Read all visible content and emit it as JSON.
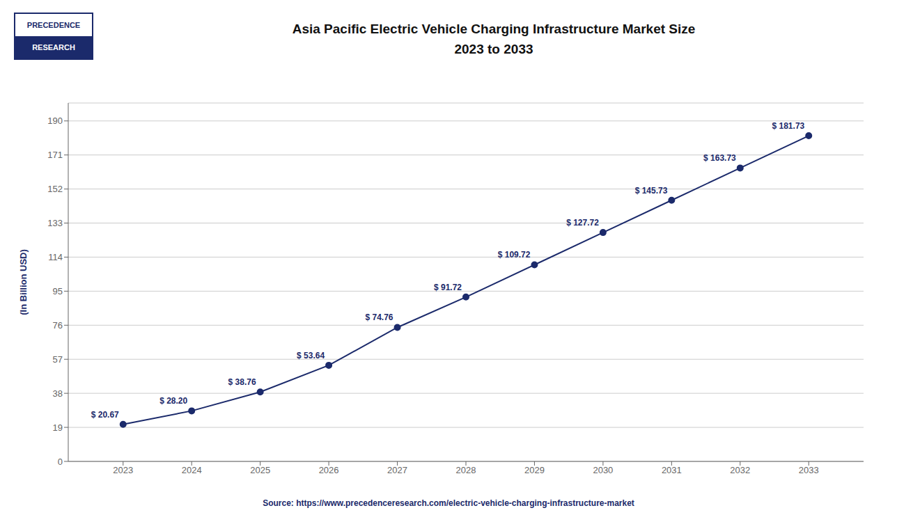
{
  "chart_data": {
    "type": "line",
    "title": "Asia Pacific Electric Vehicle Charging Infrastructure Market Size",
    "subtitle": "2023 to 2033",
    "y_label": "(In Billion USD)",
    "x": [
      2023,
      2024,
      2025,
      2026,
      2027,
      2028,
      2029,
      2030,
      2031,
      2032,
      2033
    ],
    "values": [
      20.67,
      28.2,
      38.76,
      53.64,
      74.76,
      91.72,
      109.72,
      127.72,
      145.73,
      163.73,
      181.73
    ],
    "value_labels": [
      "$ 20.67",
      "$ 28.20",
      "$ 38.76",
      "$ 53.64",
      "$ 74.76",
      "$ 91.72",
      "$ 109.72",
      "$ 127.72",
      "$ 145.73",
      "$ 163.73",
      "$ 181.73"
    ],
    "data_labels": true,
    "color": "#1b2a6b",
    "marker": "o",
    "xlim": [
      2022.2,
      2033.8
    ],
    "xticks": [
      2023,
      2024,
      2025,
      2026,
      2027,
      2028,
      2029,
      2030,
      2031,
      2032,
      2033
    ],
    "ylim": [
      0,
      200
    ],
    "yticks": [
      0,
      19,
      38,
      57,
      76,
      95,
      114,
      133,
      152,
      171,
      190
    ],
    "grid": true,
    "source": "Source: https://www.precedenceresearch.com/electric-vehicle-charging-infrastructure-market",
    "annotations": [
      "PRECEDENCE",
      "RESEARCH"
    ]
  }
}
